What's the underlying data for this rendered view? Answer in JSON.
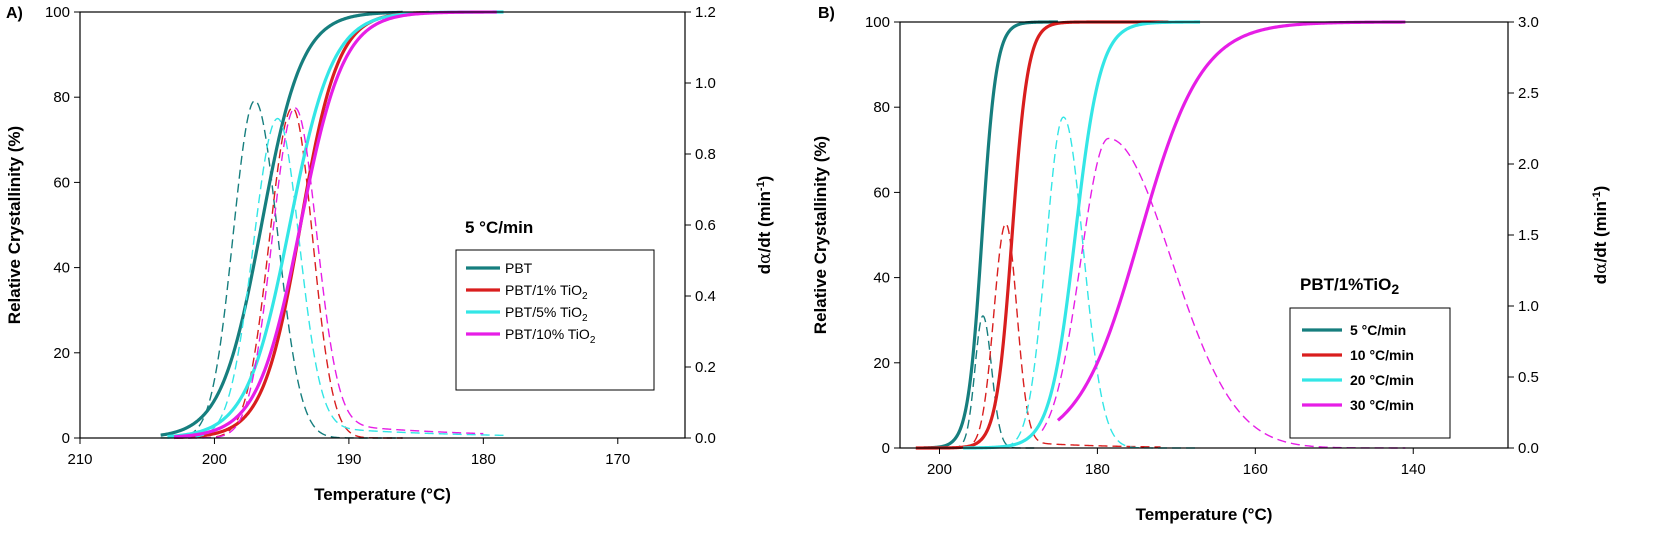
{
  "chart_data": [
    {
      "type": "line",
      "panel_label": "A)",
      "xlabel": "Temperature (°C)",
      "ylabel_left": "Relative Crystallinity (%)",
      "ylabel_right": "dα/dt (min⁻¹)",
      "ylabel_right_parts": {
        "prefix": "d",
        "alpha": "α",
        "mid": "/dt (min",
        "exp": "-1",
        "suffix": ")"
      },
      "xlim": [
        210,
        165
      ],
      "ylim_left": [
        0,
        100
      ],
      "ylim_right": [
        0,
        1.2
      ],
      "xticks": [
        210,
        200,
        190,
        180,
        170
      ],
      "yticks_left": [
        0,
        20,
        40,
        60,
        80,
        100
      ],
      "yticks_right": [
        0.0,
        0.2,
        0.4,
        0.6,
        0.8,
        1.0,
        1.2
      ],
      "legend_title": "5 °C/min",
      "legend_location": "center-right",
      "series": [
        {
          "name": "PBT",
          "label_base": "PBT",
          "label_sub": "",
          "color": "#167E7E",
          "conversion": {
            "t_half": 196.5,
            "width": 1.5,
            "t_start": 204.0,
            "t_end": 186.0
          },
          "rate": {
            "peak_x": 197.0,
            "peak_y": 0.95,
            "sigma_left": 1.6,
            "sigma_right": 1.7,
            "tail_amp": 0.0,
            "x_start": 204.0,
            "x_end": 186.0
          }
        },
        {
          "name": "PBT/1% TiO2",
          "label_base": "PBT/1% TiO",
          "label_sub": "2",
          "color": "#D91E1E",
          "conversion": {
            "t_half": 193.6,
            "width": 1.4,
            "t_start": 203.0,
            "t_end": 184.0
          },
          "rate": {
            "peak_x": 194.2,
            "peak_y": 0.93,
            "sigma_left": 1.7,
            "sigma_right": 1.5,
            "tail_amp": 0.0,
            "x_start": 203.0,
            "x_end": 186.0
          }
        },
        {
          "name": "PBT/5% TiO2",
          "label_base": "PBT/5% TiO",
          "label_sub": "2",
          "color": "#33E6E6",
          "conversion": {
            "t_half": 194.4,
            "width": 1.6,
            "t_start": 203.5,
            "t_end": 178.5
          },
          "rate": {
            "peak_x": 195.3,
            "peak_y": 0.9,
            "sigma_left": 1.8,
            "sigma_right": 1.6,
            "tail_amp": 0.04,
            "x_start": 203.5,
            "x_end": 178.5
          }
        },
        {
          "name": "PBT/10% TiO2",
          "label_base": "PBT/10% TiO",
          "label_sub": "2",
          "color": "#E61EE6",
          "conversion": {
            "t_half": 193.6,
            "width": 1.6,
            "t_start": 203.0,
            "t_end": 179.0
          },
          "rate": {
            "peak_x": 194.0,
            "peak_y": 0.93,
            "sigma_left": 1.7,
            "sigma_right": 1.6,
            "tail_amp": 0.05,
            "x_start": 203.0,
            "x_end": 180.0
          }
        }
      ]
    },
    {
      "type": "line",
      "panel_label": "B)",
      "xlabel": "Temperature (°C)",
      "ylabel_left": "Relative Crystallinity (%)",
      "ylabel_right": "dα/dt (min⁻¹)",
      "ylabel_right_parts": {
        "prefix": "d",
        "alpha": "α",
        "mid": "/dt (min",
        "exp": "-1",
        "suffix": ")"
      },
      "xlim": [
        205,
        128
      ],
      "ylim_left": [
        0,
        100
      ],
      "ylim_right": [
        0,
        3.0
      ],
      "xticks": [
        200,
        180,
        160,
        140
      ],
      "yticks_left": [
        0,
        20,
        40,
        60,
        80,
        100
      ],
      "yticks_right": [
        0.0,
        0.5,
        1.0,
        1.5,
        2.0,
        2.5,
        3.0
      ],
      "legend_title": "PBT/1%TiO2",
      "legend_title_base": "PBT/1%TiO",
      "legend_title_sub": "2",
      "legend_location": "center-right",
      "series": [
        {
          "name": "5 °C/min",
          "label_base": "5 °C/min",
          "label_sub": "",
          "color": "#167E7E",
          "conversion": {
            "t_half": 194.6,
            "width": 0.9,
            "t_start": 202.0,
            "t_end": 185.0
          },
          "rate": {
            "peak_x": 194.5,
            "peak_y": 0.93,
            "sigma_left": 1.0,
            "sigma_right": 1.1,
            "tail_amp": 0.0,
            "x_start": 202.0,
            "x_end": 188.0
          }
        },
        {
          "name": "10 °C/min",
          "label_base": "10 °C/min",
          "label_sub": "",
          "color": "#D91E1E",
          "conversion": {
            "t_half": 190.8,
            "width": 1.0,
            "t_start": 203.0,
            "t_end": 171.0
          },
          "rate": {
            "peak_x": 191.6,
            "peak_y": 1.58,
            "sigma_left": 1.5,
            "sigma_right": 1.4,
            "tail_amp": 0.05,
            "x_start": 202.5,
            "x_end": 172.0
          }
        },
        {
          "name": "20 °C/min",
          "label_base": "20 °C/min",
          "label_sub": "",
          "color": "#33E6E6",
          "conversion": {
            "t_half": 182.8,
            "width": 1.6,
            "t_start": 197.0,
            "t_end": 167.0
          },
          "rate": {
            "peak_x": 184.3,
            "peak_y": 2.33,
            "sigma_left": 2.2,
            "sigma_right": 2.5,
            "tail_amp": 0.0,
            "x_start": 197.0,
            "x_end": 167.0
          }
        },
        {
          "name": "30 °C/min",
          "label_base": "30 °C/min",
          "label_sub": "",
          "color": "#E61EE6",
          "conversion": {
            "t_half": 174.6,
            "width": 3.9,
            "t_start": 185.0,
            "t_end": 141.0
          },
          "rate": {
            "peak_x": 178.6,
            "peak_y": 2.18,
            "sigma_left": 3.5,
            "sigma_right": 8.0,
            "tail_amp": 0.0,
            "x_start": 187.0,
            "x_end": 141.0
          }
        }
      ]
    }
  ]
}
